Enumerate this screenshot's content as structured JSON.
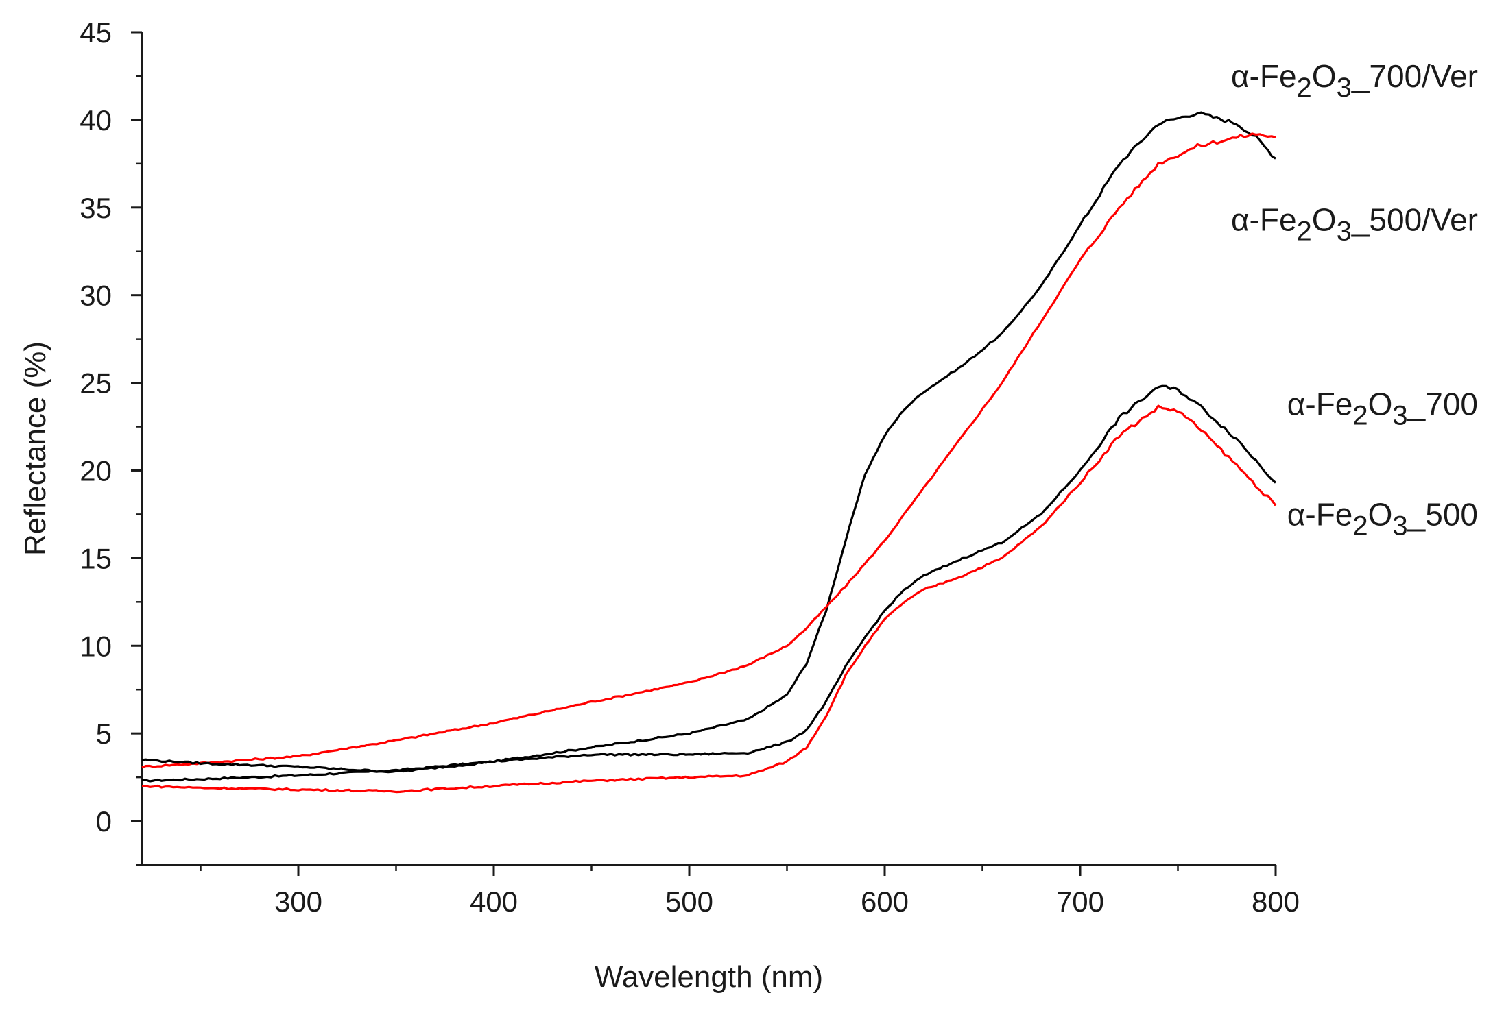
{
  "chart_data": {
    "type": "line",
    "title": "",
    "xlabel": "Wavelength (nm)",
    "ylabel": "Reflectance (%)",
    "xlim": [
      220,
      800
    ],
    "ylim": [
      -2.5,
      45
    ],
    "xticks": [
      300,
      400,
      500,
      600,
      700,
      800
    ],
    "yticks": [
      0,
      5,
      10,
      15,
      20,
      25,
      30,
      35,
      40,
      45
    ],
    "grid": false,
    "series": [
      {
        "name": "α-Fe2O3_700/Ver",
        "label_parts": {
          "prefix": "α-Fe",
          "sub1": "2",
          "mid": "O",
          "sub2": "3",
          "suffix": "_700/Ver"
        },
        "label_value": 42.5,
        "color": "#000000",
        "x": [
          220,
          250,
          300,
          350,
          400,
          450,
          500,
          530,
          550,
          560,
          570,
          580,
          590,
          600,
          610,
          620,
          640,
          660,
          680,
          700,
          720,
          740,
          760,
          780,
          790,
          800
        ],
        "y": [
          2.3,
          2.4,
          2.6,
          2.9,
          3.4,
          4.2,
          5.0,
          5.8,
          7.2,
          9.0,
          12.0,
          16.0,
          19.8,
          22.0,
          23.5,
          24.5,
          26.0,
          27.8,
          30.5,
          34.0,
          37.5,
          39.8,
          40.4,
          39.8,
          39.0,
          37.8
        ]
      },
      {
        "name": "α-Fe2O3_500/Ver",
        "label_parts": {
          "prefix": "α-Fe",
          "sub1": "2",
          "mid": "O",
          "sub2": "3",
          "suffix": "_500/Ver"
        },
        "label_value": 34.3,
        "color": "#ff0000",
        "x": [
          220,
          250,
          300,
          350,
          400,
          450,
          500,
          530,
          550,
          560,
          570,
          580,
          600,
          620,
          640,
          660,
          680,
          700,
          720,
          740,
          760,
          780,
          790,
          800
        ],
        "y": [
          3.1,
          3.3,
          3.7,
          4.6,
          5.6,
          6.8,
          7.9,
          8.9,
          10.0,
          11.0,
          12.2,
          13.4,
          16.0,
          19.0,
          22.0,
          25.0,
          28.5,
          32.0,
          35.0,
          37.5,
          38.5,
          39.0,
          39.2,
          39.0
        ]
      },
      {
        "name": "α-Fe2O3_700",
        "label_parts": {
          "prefix": "α-Fe",
          "sub1": "2",
          "mid": "O",
          "sub2": "3",
          "suffix": "_700"
        },
        "label_value": 23.8,
        "color": "#000000",
        "x": [
          220,
          250,
          300,
          350,
          400,
          450,
          500,
          530,
          550,
          560,
          570,
          580,
          590,
          600,
          610,
          620,
          640,
          660,
          680,
          700,
          720,
          740,
          750,
          760,
          780,
          800
        ],
        "y": [
          3.5,
          3.3,
          3.1,
          2.8,
          3.4,
          3.8,
          3.8,
          3.9,
          4.5,
          5.2,
          6.8,
          8.8,
          10.5,
          12.0,
          13.2,
          14.0,
          15.0,
          15.9,
          17.5,
          20.0,
          23.0,
          24.8,
          24.6,
          23.8,
          21.8,
          19.3
        ]
      },
      {
        "name": "α-Fe2O3_500",
        "label_parts": {
          "prefix": "α-Fe",
          "sub1": "2",
          "mid": "O",
          "sub2": "3",
          "suffix": "_500"
        },
        "label_value": 17.5,
        "color": "#ff0000",
        "x": [
          220,
          250,
          300,
          350,
          400,
          450,
          500,
          530,
          550,
          560,
          570,
          580,
          590,
          600,
          610,
          620,
          640,
          660,
          680,
          700,
          720,
          740,
          750,
          760,
          780,
          800
        ],
        "y": [
          2.0,
          1.9,
          1.8,
          1.7,
          2.0,
          2.3,
          2.5,
          2.6,
          3.4,
          4.2,
          6.0,
          8.3,
          10.0,
          11.5,
          12.5,
          13.2,
          14.0,
          15.0,
          16.8,
          19.3,
          22.0,
          23.6,
          23.4,
          22.5,
          20.3,
          18.0
        ]
      }
    ]
  }
}
